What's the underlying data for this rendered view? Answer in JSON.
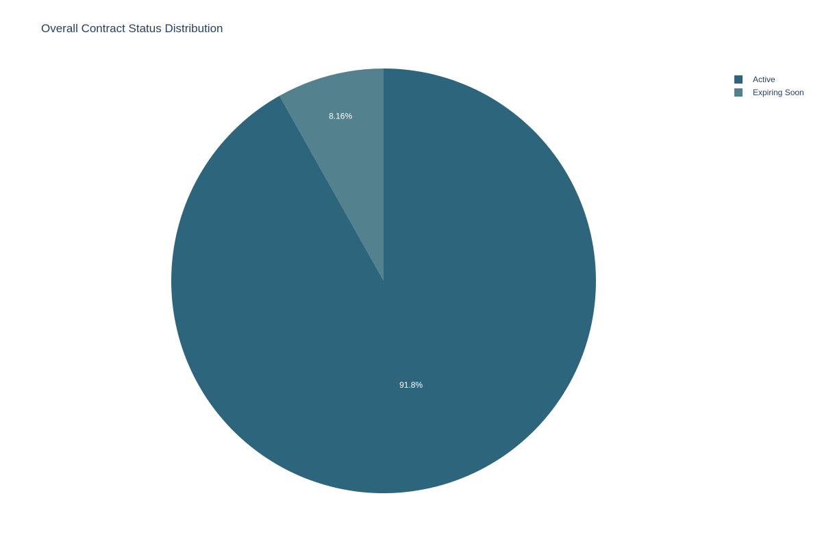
{
  "chart_data": {
    "type": "pie",
    "title": "Overall Contract Status Distribution",
    "categories": [
      "Active",
      "Expiring Soon"
    ],
    "values": [
      91.84,
      8.16
    ],
    "labels": [
      "91.8%",
      "8.16%"
    ],
    "colors": [
      "#2c657c",
      "#54818e"
    ],
    "direction": "clockwise",
    "start": "top",
    "legend_position": "top-right"
  }
}
